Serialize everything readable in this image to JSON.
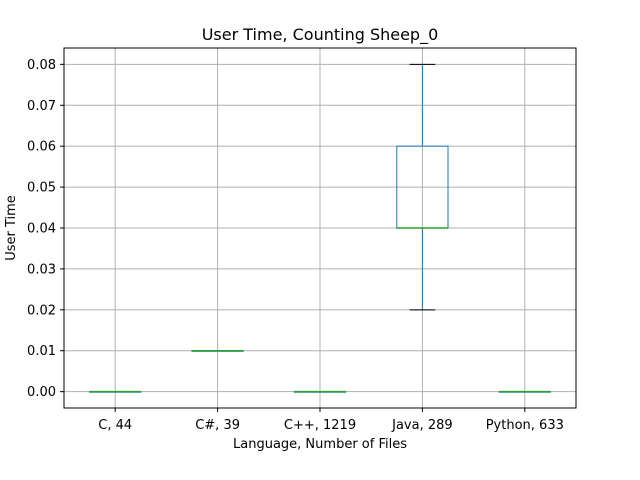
{
  "chart_data": {
    "type": "box",
    "title": "User Time, Counting Sheep_0",
    "xlabel": "Language, Number of Files",
    "ylabel": "User Time",
    "ylim": [
      -0.004,
      0.084
    ],
    "yticks": [
      0.0,
      0.01,
      0.02,
      0.03,
      0.04,
      0.05,
      0.06,
      0.07,
      0.08
    ],
    "ytick_labels": [
      "0.00",
      "0.01",
      "0.02",
      "0.03",
      "0.04",
      "0.05",
      "0.06",
      "0.07",
      "0.08"
    ],
    "grid": true,
    "categories": [
      "C, 44",
      "C#, 39",
      "C++, 1219",
      "Java, 289",
      "Python, 633"
    ],
    "boxes": [
      {
        "whisker_low": 0.0,
        "q1": 0.0,
        "median": 0.0,
        "q3": 0.0,
        "whisker_high": 0.0
      },
      {
        "whisker_low": 0.01,
        "q1": 0.01,
        "median": 0.01,
        "q3": 0.01,
        "whisker_high": 0.01
      },
      {
        "whisker_low": 0.0,
        "q1": 0.0,
        "median": 0.0,
        "q3": 0.0,
        "whisker_high": 0.0
      },
      {
        "whisker_low": 0.02,
        "q1": 0.04,
        "median": 0.04,
        "q3": 0.06,
        "whisker_high": 0.08
      },
      {
        "whisker_low": 0.0,
        "q1": 0.0,
        "median": 0.0,
        "q3": 0.0,
        "whisker_high": 0.0
      }
    ],
    "colors": {
      "box": "#1f77b4",
      "median": "#2ca02c",
      "whisker": "#1f77b4",
      "cap": "#000000",
      "grid": "#b0b0b0"
    }
  }
}
